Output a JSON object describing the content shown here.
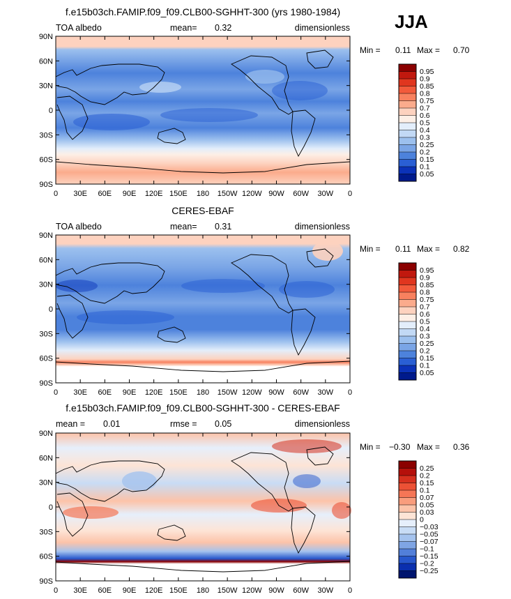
{
  "season": "JJA",
  "chart_data": [
    {
      "type": "heatmap",
      "title": "f.e15b03ch.FAMIP.f09_f09.CLB00-SGHHT-300 (yrs 1980-1984)",
      "left_label": "TOA albedo",
      "center_label": "mean=",
      "center_value": "0.32",
      "right_label": "dimensionless",
      "min_label": "Min =",
      "min_value": "0.11",
      "max_label": "Max =",
      "max_value": "0.70",
      "x_ticks": [
        "0",
        "30E",
        "60E",
        "90E",
        "120E",
        "150E",
        "180",
        "150W",
        "120W",
        "90W",
        "60W",
        "30W",
        "0"
      ],
      "y_ticks": [
        "90N",
        "60N",
        "30N",
        "0",
        "30S",
        "60S",
        "90S"
      ],
      "colorbar": {
        "labels": [
          "0.95",
          "0.9",
          "0.85",
          "0.8",
          "0.75",
          "0.7",
          "0.6",
          "0.5",
          "0.4",
          "0.3",
          "0.25",
          "0.2",
          "0.15",
          "0.1",
          "0.05"
        ],
        "colors": [
          "#8b0000",
          "#c1180e",
          "#e0361f",
          "#f25a3b",
          "#f8815f",
          "#fbab8c",
          "#fdd2bf",
          "#fdefe6",
          "#e3eefb",
          "#c2d9f5",
          "#9cc0ee",
          "#7aa5e6",
          "#4d82dc",
          "#2a5fd4",
          "#0b32b8",
          "#001a8c"
        ]
      }
    },
    {
      "type": "heatmap",
      "title": "CERES-EBAF",
      "left_label": "TOA albedo",
      "center_label": "mean=",
      "center_value": "0.31",
      "right_label": "dimensionless",
      "min_label": "Min =",
      "min_value": "0.11",
      "max_label": "Max =",
      "max_value": "0.82",
      "x_ticks": [
        "0",
        "30E",
        "60E",
        "90E",
        "120E",
        "150E",
        "180",
        "150W",
        "120W",
        "90W",
        "60W",
        "30W",
        "0"
      ],
      "y_ticks": [
        "90N",
        "60N",
        "30N",
        "0",
        "30S",
        "60S",
        "90S"
      ],
      "colorbar": {
        "labels": [
          "0.95",
          "0.9",
          "0.85",
          "0.8",
          "0.75",
          "0.7",
          "0.6",
          "0.5",
          "0.4",
          "0.3",
          "0.25",
          "0.2",
          "0.15",
          "0.1",
          "0.05"
        ],
        "colors": [
          "#8b0000",
          "#c1180e",
          "#e0361f",
          "#f25a3b",
          "#f8815f",
          "#fbab8c",
          "#fdd2bf",
          "#fdefe6",
          "#e3eefb",
          "#c2d9f5",
          "#9cc0ee",
          "#7aa5e6",
          "#4d82dc",
          "#2a5fd4",
          "#0b32b8",
          "#001a8c"
        ]
      }
    },
    {
      "type": "heatmap",
      "title": "f.e15b03ch.FAMIP.f09_f09.CLB00-SGHHT-300 - CERES-EBAF",
      "left_label": "mean =",
      "left_value": "0.01",
      "center_label": "rmse =",
      "center_value": "0.05",
      "right_label": "dimensionless",
      "min_label": "Min =",
      "min_value": "−0.30",
      "max_label": "Max =",
      "max_value": "0.36",
      "x_ticks": [
        "0",
        "30E",
        "60E",
        "90E",
        "120E",
        "150E",
        "180",
        "150W",
        "120W",
        "90W",
        "60W",
        "30W",
        "0"
      ],
      "y_ticks": [
        "90N",
        "60N",
        "30N",
        "0",
        "30S",
        "60S",
        "90S"
      ],
      "colorbar": {
        "labels": [
          "0.25",
          "0.2",
          "0.15",
          "0.1",
          "0.07",
          "0.05",
          "0.03",
          "0",
          "−0.03",
          "−0.05",
          "−0.07",
          "−0.1",
          "−0.15",
          "−0.2",
          "−0.25"
        ],
        "colors": [
          "#8b0000",
          "#b5100b",
          "#d6301e",
          "#ec5135",
          "#f57656",
          "#f99d7d",
          "#fcc3a9",
          "#fde4d6",
          "#e6effb",
          "#c8dcf5",
          "#a5c3ee",
          "#7fa5e4",
          "#527fd9",
          "#2757cc",
          "#0a2fae",
          "#00156f"
        ]
      }
    }
  ]
}
